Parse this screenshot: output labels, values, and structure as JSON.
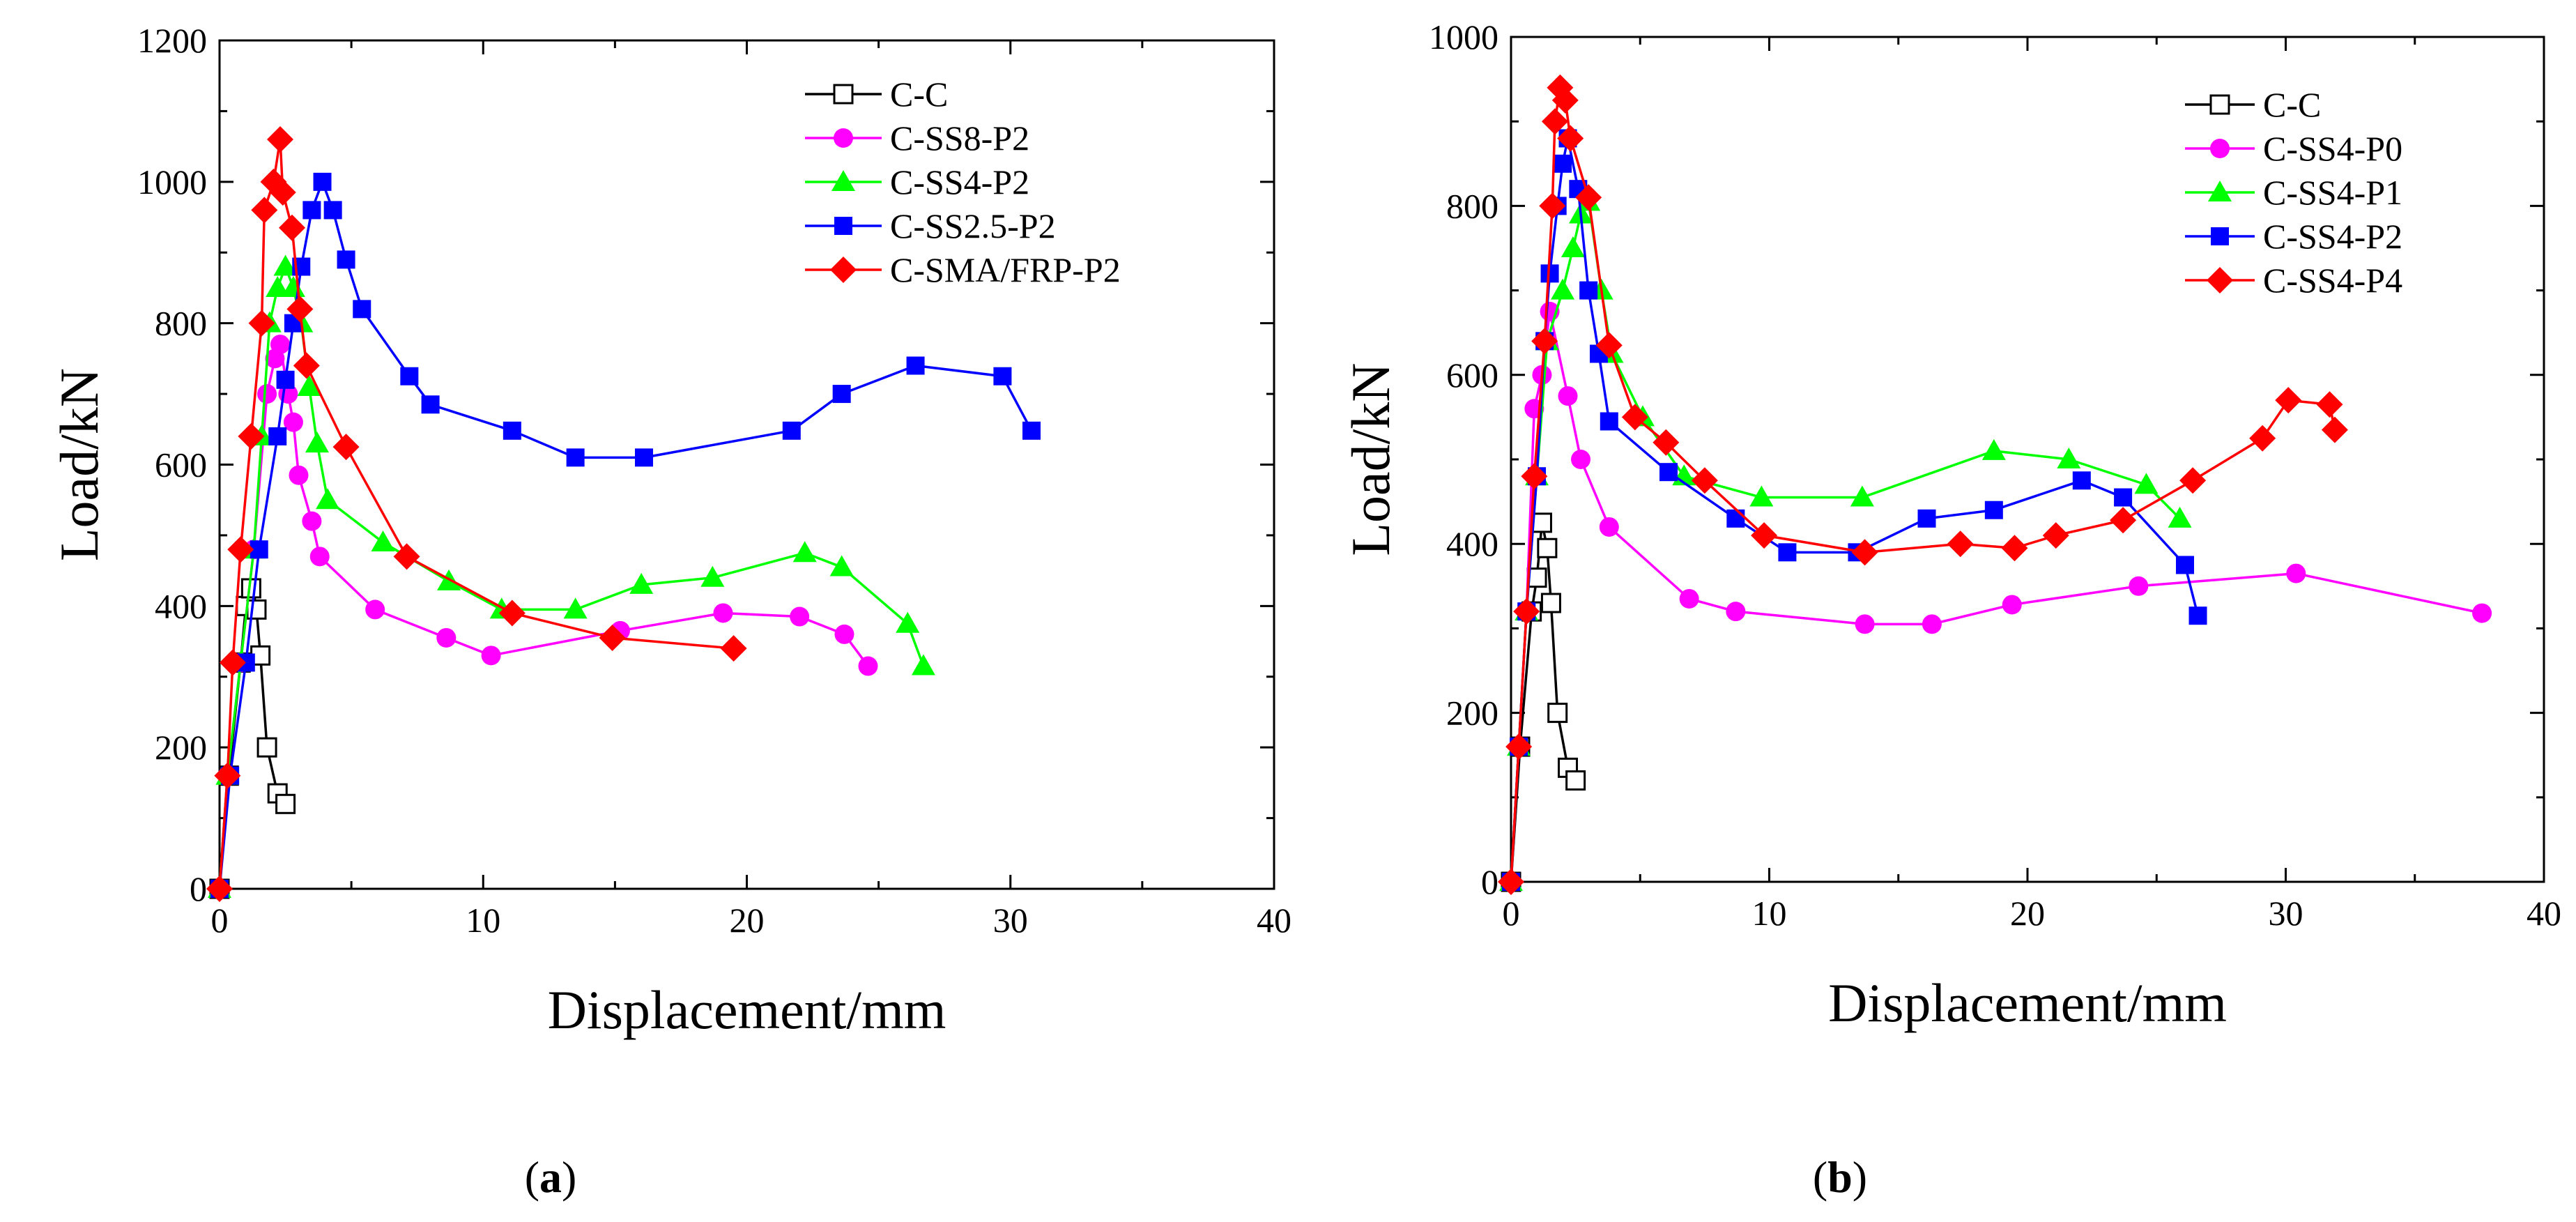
{
  "chart_data": [
    {
      "type": "line",
      "panel_label": "(a)",
      "xlabel": "Displacement/mm",
      "ylabel": "Load/kN",
      "xlim": [
        0,
        40
      ],
      "ylim": [
        0,
        1200
      ],
      "xticks": [
        0,
        10,
        20,
        30,
        40
      ],
      "yticks": [
        0,
        200,
        400,
        600,
        800,
        1000,
        1200
      ],
      "legend_position": "top-right",
      "series": [
        {
          "name": "C-C",
          "color": "#000000",
          "marker": "open-square",
          "x": [
            0,
            0.35,
            0.8,
            1.0,
            1.2,
            1.4,
            1.55,
            1.8,
            2.2,
            2.5
          ],
          "y": [
            0,
            160,
            320,
            400,
            425,
            395,
            330,
            200,
            135,
            120
          ]
        },
        {
          "name": "C-SS8-P2",
          "color": "#ff00ff",
          "marker": "circle",
          "x": [
            0,
            0.3,
            0.8,
            1.3,
            1.8,
            2.1,
            2.3,
            2.6,
            2.8,
            3.0,
            3.5,
            3.8,
            5.9,
            8.6,
            10.3,
            15.2,
            19.1,
            22.0,
            23.7,
            24.6
          ],
          "y": [
            0,
            160,
            320,
            480,
            700,
            750,
            770,
            700,
            660,
            585,
            520,
            470,
            395,
            355,
            330,
            365,
            390,
            385,
            360,
            315
          ]
        },
        {
          "name": "C-SS4-P2",
          "color": "#00ff00",
          "marker": "triangle",
          "x": [
            0,
            0.3,
            0.8,
            1.3,
            1.6,
            1.9,
            2.2,
            2.5,
            2.8,
            3.1,
            3.4,
            3.7,
            4.1,
            6.2,
            8.7,
            10.7,
            13.5,
            16.0,
            18.7,
            22.2,
            23.6,
            26.1,
            26.7
          ],
          "y": [
            0,
            160,
            320,
            480,
            640,
            800,
            850,
            880,
            850,
            800,
            710,
            630,
            550,
            490,
            435,
            395,
            395,
            430,
            440,
            475,
            455,
            375,
            315
          ]
        },
        {
          "name": "C-SS2.5-P2",
          "color": "#0000ff",
          "marker": "square",
          "x": [
            0,
            0.4,
            1.0,
            1.5,
            2.2,
            2.5,
            2.8,
            3.1,
            3.5,
            3.9,
            4.3,
            4.8,
            5.4,
            7.2,
            8.0,
            11.1,
            13.5,
            16.1,
            21.7,
            23.6,
            26.4,
            29.7,
            30.8
          ],
          "y": [
            0,
            160,
            320,
            480,
            640,
            720,
            800,
            880,
            960,
            1000,
            960,
            890,
            820,
            725,
            685,
            648,
            610,
            610,
            648,
            700,
            740,
            725,
            648
          ]
        },
        {
          "name": "C-SMA/FRP-P2",
          "color": "#ff0000",
          "marker": "diamond",
          "x": [
            0,
            0.3,
            0.5,
            0.8,
            1.2,
            1.6,
            1.7,
            2.05,
            2.3,
            2.4,
            2.75,
            3.05,
            3.3,
            4.8,
            7.1,
            11.1,
            14.9,
            19.5
          ],
          "y": [
            0,
            160,
            320,
            480,
            640,
            800,
            960,
            1000,
            1060,
            985,
            935,
            820,
            740,
            625,
            470,
            390,
            355,
            340
          ]
        }
      ]
    },
    {
      "type": "line",
      "panel_label": "(b)",
      "xlabel": "Displacement/mm",
      "ylabel": "Load/kN",
      "xlim": [
        0,
        40
      ],
      "ylim": [
        0,
        1000
      ],
      "xticks": [
        0,
        10,
        20,
        30,
        40
      ],
      "yticks": [
        0,
        200,
        400,
        600,
        800,
        1000
      ],
      "legend_position": "top-right",
      "series": [
        {
          "name": "C-C",
          "color": "#000000",
          "marker": "open-square",
          "x": [
            0,
            0.35,
            0.8,
            1.0,
            1.2,
            1.4,
            1.55,
            1.8,
            2.2,
            2.5
          ],
          "y": [
            0,
            160,
            320,
            360,
            425,
            395,
            330,
            200,
            135,
            120
          ]
        },
        {
          "name": "C-SS4-P0",
          "color": "#ff00ff",
          "marker": "circle",
          "x": [
            0,
            0.3,
            0.6,
            0.9,
            1.2,
            1.5,
            2.2,
            2.7,
            3.8,
            6.9,
            8.7,
            13.7,
            16.3,
            19.4,
            24.3,
            30.4,
            37.6
          ],
          "y": [
            0,
            160,
            320,
            560,
            600,
            675,
            575,
            500,
            420,
            335,
            320,
            305,
            305,
            328,
            350,
            365,
            318
          ]
        },
        {
          "name": "C-SS4-P1",
          "color": "#00ff00",
          "marker": "triangle",
          "x": [
            0,
            0.3,
            0.6,
            1.0,
            1.4,
            2.0,
            2.4,
            2.7,
            3.0,
            3.5,
            3.9,
            5.1,
            6.7,
            9.7,
            13.6,
            18.7,
            21.6,
            24.6,
            25.9
          ],
          "y": [
            0,
            160,
            320,
            480,
            640,
            700,
            750,
            790,
            805,
            700,
            625,
            550,
            480,
            455,
            455,
            510,
            500,
            470,
            430
          ]
        },
        {
          "name": "C-SS4-P2",
          "color": "#0000ff",
          "marker": "square",
          "x": [
            0,
            0.3,
            0.6,
            1.0,
            1.3,
            1.5,
            1.8,
            2.0,
            2.2,
            2.6,
            3.0,
            3.4,
            3.8,
            6.1,
            8.7,
            10.7,
            13.4,
            16.1,
            18.7,
            22.1,
            23.7,
            26.1,
            26.6
          ],
          "y": [
            0,
            160,
            320,
            480,
            640,
            720,
            800,
            850,
            880,
            820,
            700,
            625,
            545,
            485,
            430,
            390,
            390,
            430,
            440,
            475,
            455,
            375,
            315
          ]
        },
        {
          "name": "C-SS4-P4",
          "color": "#ff0000",
          "marker": "diamond",
          "x": [
            0,
            0.3,
            0.6,
            0.9,
            1.3,
            1.6,
            1.7,
            1.9,
            2.1,
            2.3,
            3.0,
            3.8,
            4.8,
            6.0,
            7.5,
            9.8,
            13.7,
            17.4,
            19.5,
            21.1,
            23.7,
            26.4,
            29.1,
            30.1,
            31.7,
            31.9
          ],
          "y": [
            0,
            160,
            320,
            480,
            640,
            800,
            900,
            940,
            925,
            880,
            810,
            635,
            550,
            520,
            475,
            410,
            390,
            400,
            395,
            410,
            428,
            475,
            525,
            570,
            565,
            535
          ]
        }
      ]
    }
  ]
}
